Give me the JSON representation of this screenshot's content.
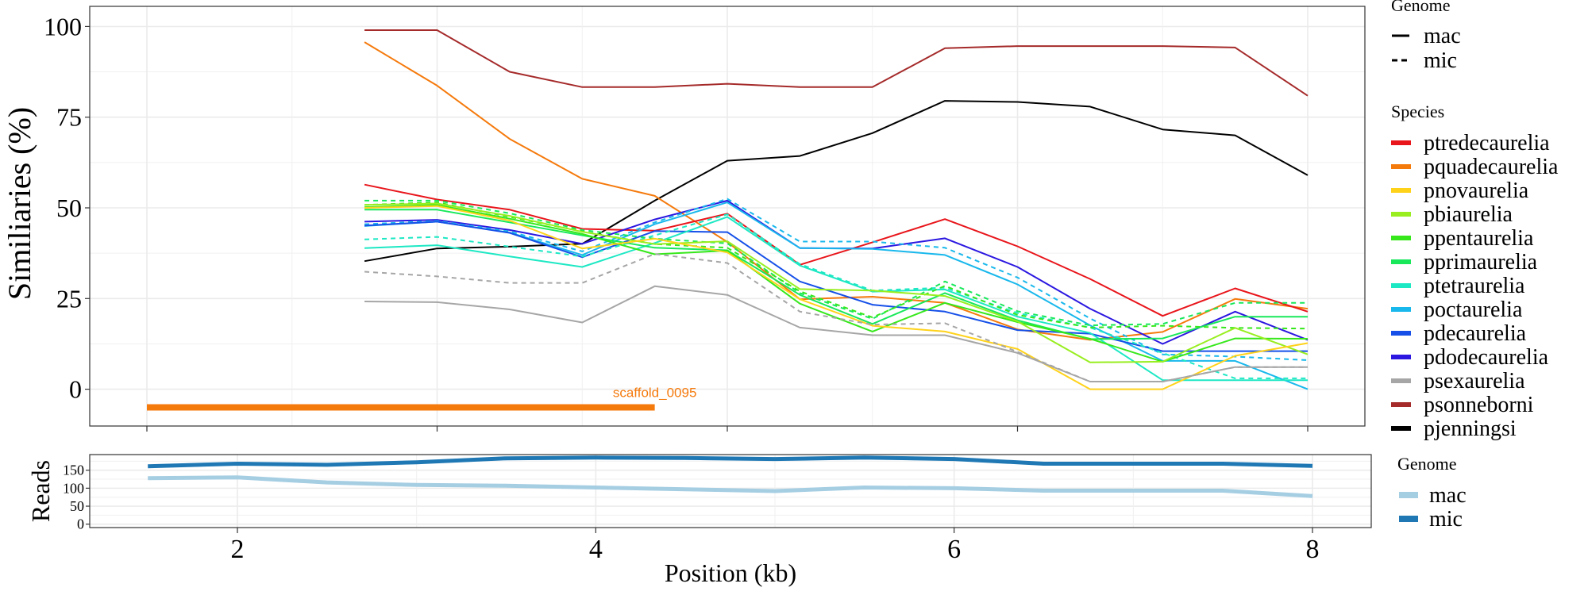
{
  "chart_data": [
    {
      "type": "line",
      "panel": "similarity",
      "title": "",
      "xlabel": "",
      "ylabel": "Similiaries (%)",
      "ylim": [
        -8,
        105
      ],
      "xlim": [
        -0.4,
        8.4
      ],
      "yticks": [
        0,
        25,
        50,
        75,
        100
      ],
      "ytick_labels": [
        "0",
        "25",
        "50",
        "75",
        "100"
      ],
      "xticks": [
        0,
        2,
        4,
        6,
        8
      ],
      "xtick_labels": [
        "",
        "",
        "",
        "",
        ""
      ],
      "grid": true,
      "x": [
        1.5,
        2,
        2.5,
        3,
        3.5,
        4,
        4.5,
        5,
        5.5,
        6,
        6.5,
        7,
        7.5,
        8
      ],
      "annotation": {
        "text": "scaffold_0095",
        "color": "#F57A0C",
        "x_start": 0,
        "x_end": 3.5,
        "y": -5
      },
      "series": [
        {
          "species": "psonneborni",
          "genome": "mac",
          "color": "#A52A2A",
          "values": [
            99,
            99,
            87.5,
            83.3,
            83.3,
            84.2,
            83.3,
            83.3,
            94,
            94.6,
            94.6,
            94.6,
            94.2,
            80.9
          ]
        },
        {
          "species": "pjenningsi",
          "genome": "mac",
          "color": "#000000",
          "values": [
            35.3,
            38.8,
            39.3,
            40.1,
            52,
            63,
            64.3,
            70.6,
            79.5,
            79.2,
            77.9,
            71.6,
            70,
            59
          ]
        },
        {
          "species": "pquadecaurelia",
          "genome": "mac",
          "color": "#F57A0C",
          "values": [
            95.7,
            83.7,
            69,
            58,
            53.3,
            40.6,
            24.8,
            25.5,
            23.8,
            16.5,
            13.6,
            15.8,
            24.9,
            22.2
          ]
        },
        {
          "species": "ptredecaurelia",
          "genome": "mac",
          "color": "#E8151B",
          "values": [
            56.4,
            52.3,
            49.5,
            44.2,
            43.7,
            48.4,
            34.3,
            40.5,
            46.9,
            39.4,
            30.4,
            20.2,
            27.8,
            21.4
          ]
        },
        {
          "species": "pdodecaurelia",
          "genome": "mac",
          "color": "#2B17E0",
          "values": [
            46.2,
            46.7,
            43.9,
            40.1,
            46.8,
            52,
            38.9,
            38.8,
            41.6,
            33.7,
            22.2,
            12.5,
            21.4,
            13.6
          ]
        },
        {
          "species": "poctaurelia",
          "genome": "mic",
          "color": "#19B8EC",
          "values": [
            45.5,
            46.4,
            43.5,
            38,
            46,
            52.5,
            40.7,
            40.7,
            39,
            30.8,
            19.5,
            9.6,
            9,
            8
          ]
        },
        {
          "species": "poctaurelia",
          "genome": "mac",
          "color": "#19B8EC",
          "values": [
            45,
            46.2,
            43.2,
            37,
            45.5,
            51.5,
            38.9,
            38.7,
            37,
            28.9,
            17.6,
            7.8,
            7.8,
            0
          ]
        },
        {
          "species": "pdecaurelia",
          "genome": "mac",
          "color": "#1650E8",
          "values": [
            45.1,
            46.2,
            43.1,
            36.4,
            43.6,
            43.3,
            29.7,
            23.3,
            21.4,
            16.3,
            15.3,
            10.5,
            10.5,
            10.5
          ]
        },
        {
          "species": "ptetraurelia",
          "genome": "mic",
          "color": "#1DE8C4",
          "values": [
            41.3,
            42,
            39.3,
            36.6,
            42.4,
            48.2,
            34.5,
            27.2,
            28,
            21,
            17,
            10,
            3,
            3
          ]
        },
        {
          "species": "ptetraurelia",
          "genome": "mac",
          "color": "#1DE8C4",
          "values": [
            38.9,
            39.7,
            36.6,
            33.7,
            40.3,
            47.5,
            34.1,
            26.9,
            27.5,
            20,
            15.5,
            2.5,
            2.5,
            2.5
          ]
        },
        {
          "species": "pprimaurelia",
          "genome": "mic",
          "color": "#18E85A",
          "values": [
            52,
            52,
            48.5,
            43.9,
            41.5,
            40.2,
            26.5,
            19.4,
            29.7,
            21.5,
            17.6,
            18,
            23.8,
            23.8
          ]
        },
        {
          "species": "pprimaurelia",
          "genome": "mac",
          "color": "#18E85A",
          "values": [
            49.5,
            49.5,
            46,
            42.4,
            39,
            38.3,
            26,
            18,
            26.5,
            19,
            13.8,
            14,
            20,
            20
          ]
        },
        {
          "species": "ppentaurelia",
          "genome": "mic",
          "color": "#36E81B",
          "values": [
            50.8,
            51.5,
            47.5,
            43.5,
            40,
            39,
            27,
            19.8,
            28.5,
            20.5,
            17,
            17.5,
            16.9,
            16.7
          ]
        },
        {
          "species": "ppentaurelia",
          "genome": "mac",
          "color": "#36E81B",
          "values": [
            50.2,
            50.8,
            47,
            42.8,
            37.2,
            38.2,
            23.6,
            15.9,
            23.8,
            18.5,
            13.9,
            7.6,
            14,
            13.9
          ]
        },
        {
          "species": "pbiaurelia",
          "genome": "mac",
          "color": "#98EE1F",
          "values": [
            50.8,
            51.2,
            47.8,
            43.4,
            40,
            40.8,
            27.6,
            27.2,
            25.7,
            18.7,
            7.4,
            7.6,
            16.9,
            9.6
          ]
        },
        {
          "species": "pnovaurelia",
          "genome": "mac",
          "color": "#FFD21A",
          "values": [
            50,
            50.5,
            46.5,
            38.8,
            41.5,
            37.7,
            24.8,
            17.5,
            15.9,
            11.1,
            0,
            0,
            9.2,
            12.7
          ]
        },
        {
          "species": "psexaurelia",
          "genome": "mic",
          "color": "#A6A6A6",
          "values": [
            32.4,
            31.1,
            29.3,
            29.3,
            37.3,
            34.8,
            21.4,
            17.8,
            18.2,
            10.3,
            2.1,
            2.1,
            6.1,
            6.1
          ]
        },
        {
          "species": "psexaurelia",
          "genome": "mac",
          "color": "#A6A6A6",
          "values": [
            24.2,
            24,
            22,
            18.4,
            28.4,
            26,
            17,
            14.9,
            14.9,
            10,
            2.1,
            2.1,
            6.1,
            6.1
          ]
        }
      ],
      "legends": [
        {
          "title": "Genome",
          "items": [
            {
              "label": "mac",
              "style": "solid"
            },
            {
              "label": "mic",
              "style": "dashed"
            }
          ]
        },
        {
          "title": "Species",
          "items": [
            {
              "label": "ptredecaurelia",
              "color": "#E8151B"
            },
            {
              "label": "pquadecaurelia",
              "color": "#F57A0C"
            },
            {
              "label": "pnovaurelia",
              "color": "#FFD21A"
            },
            {
              "label": "pbiaurelia",
              "color": "#98EE1F"
            },
            {
              "label": "ppentaurelia",
              "color": "#36E81B"
            },
            {
              "label": "pprimaurelia",
              "color": "#18E85A"
            },
            {
              "label": "ptetraurelia",
              "color": "#1DE8C4"
            },
            {
              "label": "poctaurelia",
              "color": "#19B8EC"
            },
            {
              "label": "pdecaurelia",
              "color": "#1650E8"
            },
            {
              "label": "pdodecaurelia",
              "color": "#2B17E0"
            },
            {
              "label": "psexaurelia",
              "color": "#A6A6A6"
            },
            {
              "label": "psonneborni",
              "color": "#A52A2A"
            },
            {
              "label": "pjenningsi",
              "color": "#000000"
            }
          ]
        }
      ],
      "legend_position": "right"
    },
    {
      "type": "line",
      "panel": "reads",
      "title": "",
      "xlabel": "Position (kb)",
      "ylabel": "Reads",
      "ylim": [
        -5,
        195
      ],
      "xlim": [
        1.14,
        8.33
      ],
      "yticks": [
        0,
        50,
        100,
        150
      ],
      "ytick_labels": [
        "0",
        "50",
        "100",
        "150"
      ],
      "xticks": [
        2,
        4,
        6,
        8
      ],
      "xtick_labels": [
        "2",
        "4",
        "6",
        "8"
      ],
      "grid": true,
      "x": [
        1.5,
        2,
        2.5,
        3,
        3.5,
        4,
        4.5,
        5,
        5.5,
        6,
        6.5,
        7,
        7.5,
        8
      ],
      "series": [
        {
          "name": "mac",
          "color": "#A6CEE3",
          "values": [
            128,
            130,
            116,
            109,
            107,
            102,
            97,
            92,
            102,
            100,
            93,
            93,
            93,
            78
          ]
        },
        {
          "name": "mic",
          "color": "#1F78B4",
          "values": [
            161,
            168,
            165,
            172,
            183,
            185,
            184,
            181,
            185,
            181,
            168,
            168,
            168,
            162
          ]
        }
      ],
      "legends": [
        {
          "title": "Genome",
          "items": [
            {
              "label": "mac",
              "color": "#A6CEE3"
            },
            {
              "label": "mic",
              "color": "#1F78B4"
            }
          ]
        }
      ],
      "legend_position": "right"
    }
  ]
}
